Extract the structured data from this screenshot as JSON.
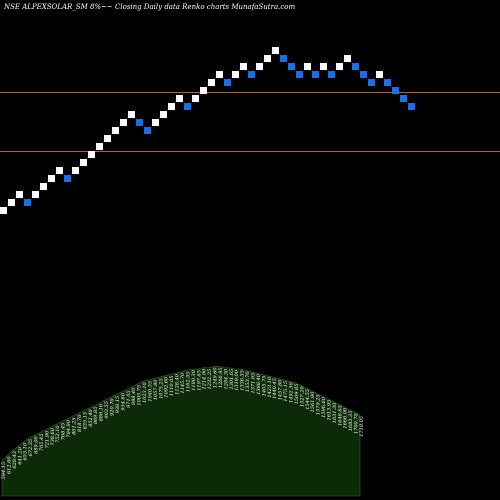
{
  "header": {
    "title": "NSE ALPEXSOLAR_SM 8%~~ Closing Daily data  Renko  charts MunafaSutra.com"
  },
  "chart_data": {
    "type": "renko",
    "box_size_pct": 8,
    "colors": {
      "up": "#ffffff",
      "down": "#1f6fe0",
      "reference_line": "#b5651d",
      "volume_fill": "#0c2a08",
      "volume_edge": "#2f6b22"
    },
    "reference_lines": [
      1000,
      815
    ],
    "bricks": [
      {
        "dir": "up",
        "close": 640
      },
      {
        "dir": "up",
        "close": 665
      },
      {
        "dir": "up",
        "close": 690
      },
      {
        "dir": "down",
        "close": 665
      },
      {
        "dir": "up",
        "close": 690
      },
      {
        "dir": "up",
        "close": 715
      },
      {
        "dir": "up",
        "close": 740
      },
      {
        "dir": "up",
        "close": 765
      },
      {
        "dir": "down",
        "close": 740
      },
      {
        "dir": "up",
        "close": 765
      },
      {
        "dir": "up",
        "close": 790
      },
      {
        "dir": "up",
        "close": 815
      },
      {
        "dir": "up",
        "close": 840
      },
      {
        "dir": "up",
        "close": 865
      },
      {
        "dir": "up",
        "close": 890
      },
      {
        "dir": "up",
        "close": 915
      },
      {
        "dir": "up",
        "close": 940
      },
      {
        "dir": "down",
        "close": 915
      },
      {
        "dir": "down",
        "close": 890
      },
      {
        "dir": "up",
        "close": 915
      },
      {
        "dir": "up",
        "close": 940
      },
      {
        "dir": "up",
        "close": 965
      },
      {
        "dir": "up",
        "close": 990
      },
      {
        "dir": "down",
        "close": 965
      },
      {
        "dir": "up",
        "close": 990
      },
      {
        "dir": "up",
        "close": 1015
      },
      {
        "dir": "up",
        "close": 1040
      },
      {
        "dir": "up",
        "close": 1065
      },
      {
        "dir": "down",
        "close": 1040
      },
      {
        "dir": "up",
        "close": 1065
      },
      {
        "dir": "up",
        "close": 1090
      },
      {
        "dir": "down",
        "close": 1065
      },
      {
        "dir": "up",
        "close": 1090
      },
      {
        "dir": "up",
        "close": 1115
      },
      {
        "dir": "up",
        "close": 1140
      },
      {
        "dir": "down",
        "close": 1115
      },
      {
        "dir": "down",
        "close": 1090
      },
      {
        "dir": "down",
        "close": 1065
      },
      {
        "dir": "up",
        "close": 1090
      },
      {
        "dir": "down",
        "close": 1065
      },
      {
        "dir": "up",
        "close": 1090
      },
      {
        "dir": "down",
        "close": 1065
      },
      {
        "dir": "up",
        "close": 1090
      },
      {
        "dir": "up",
        "close": 1115
      },
      {
        "dir": "down",
        "close": 1090
      },
      {
        "dir": "down",
        "close": 1065
      },
      {
        "dir": "down",
        "close": 1040
      },
      {
        "dir": "up",
        "close": 1065
      },
      {
        "dir": "down",
        "close": 1040
      },
      {
        "dir": "down",
        "close": 1015
      },
      {
        "dir": "down",
        "close": 990
      },
      {
        "dir": "down",
        "close": 965
      }
    ],
    "volume_profile": [
      26,
      30,
      34,
      37,
      40,
      43,
      45,
      47,
      49,
      51,
      53,
      55,
      57,
      59,
      61,
      63,
      65,
      67,
      69,
      71,
      73,
      75,
      77,
      79,
      81,
      83,
      85,
      86,
      87,
      88,
      89,
      90,
      91,
      92,
      93,
      94,
      94,
      95,
      95,
      96,
      96,
      95,
      95,
      94,
      94,
      93,
      92,
      91,
      90,
      89,
      88,
      87,
      86,
      85,
      84,
      82,
      80,
      78,
      76,
      74,
      72,
      70,
      68,
      66,
      64,
      62,
      60
    ],
    "volume_labels": [
      "594.15",
      "612.60",
      "628.43",
      "641.20",
      "655.10",
      "672.35",
      "689.00",
      "705.45",
      "721.90",
      "738.60",
      "752.10",
      "768.45",
      "784.90",
      "801.25",
      "818.70",
      "835.15",
      "852.40",
      "869.85",
      "886.10",
      "903.55",
      "920.70",
      "938.15",
      "954.60",
      "971.05",
      "988.40",
      "1005.75",
      "1023.10",
      "1040.55",
      "1057.80",
      "1075.25",
      "1092.60",
      "1110.05",
      "1128.40",
      "1145.70",
      "1162.95",
      "1180.30",
      "1197.65",
      "1214.90",
      "1232.25",
      "1249.60",
      "1266.95",
      "1284.30",
      "1301.65",
      "1319.00",
      "1336.35",
      "1353.70",
      "1371.05",
      "1388.40",
      "1405.75",
      "1423.10",
      "1440.45",
      "1457.80",
      "1475.15",
      "1492.50",
      "1509.85",
      "1527.20",
      "1544.55",
      "1561.90",
      "1579.25",
      "1596.60",
      "1613.95",
      "1631.30",
      "1648.65",
      "1666.00",
      "1683.35",
      "1700.70",
      "1718.05"
    ]
  }
}
